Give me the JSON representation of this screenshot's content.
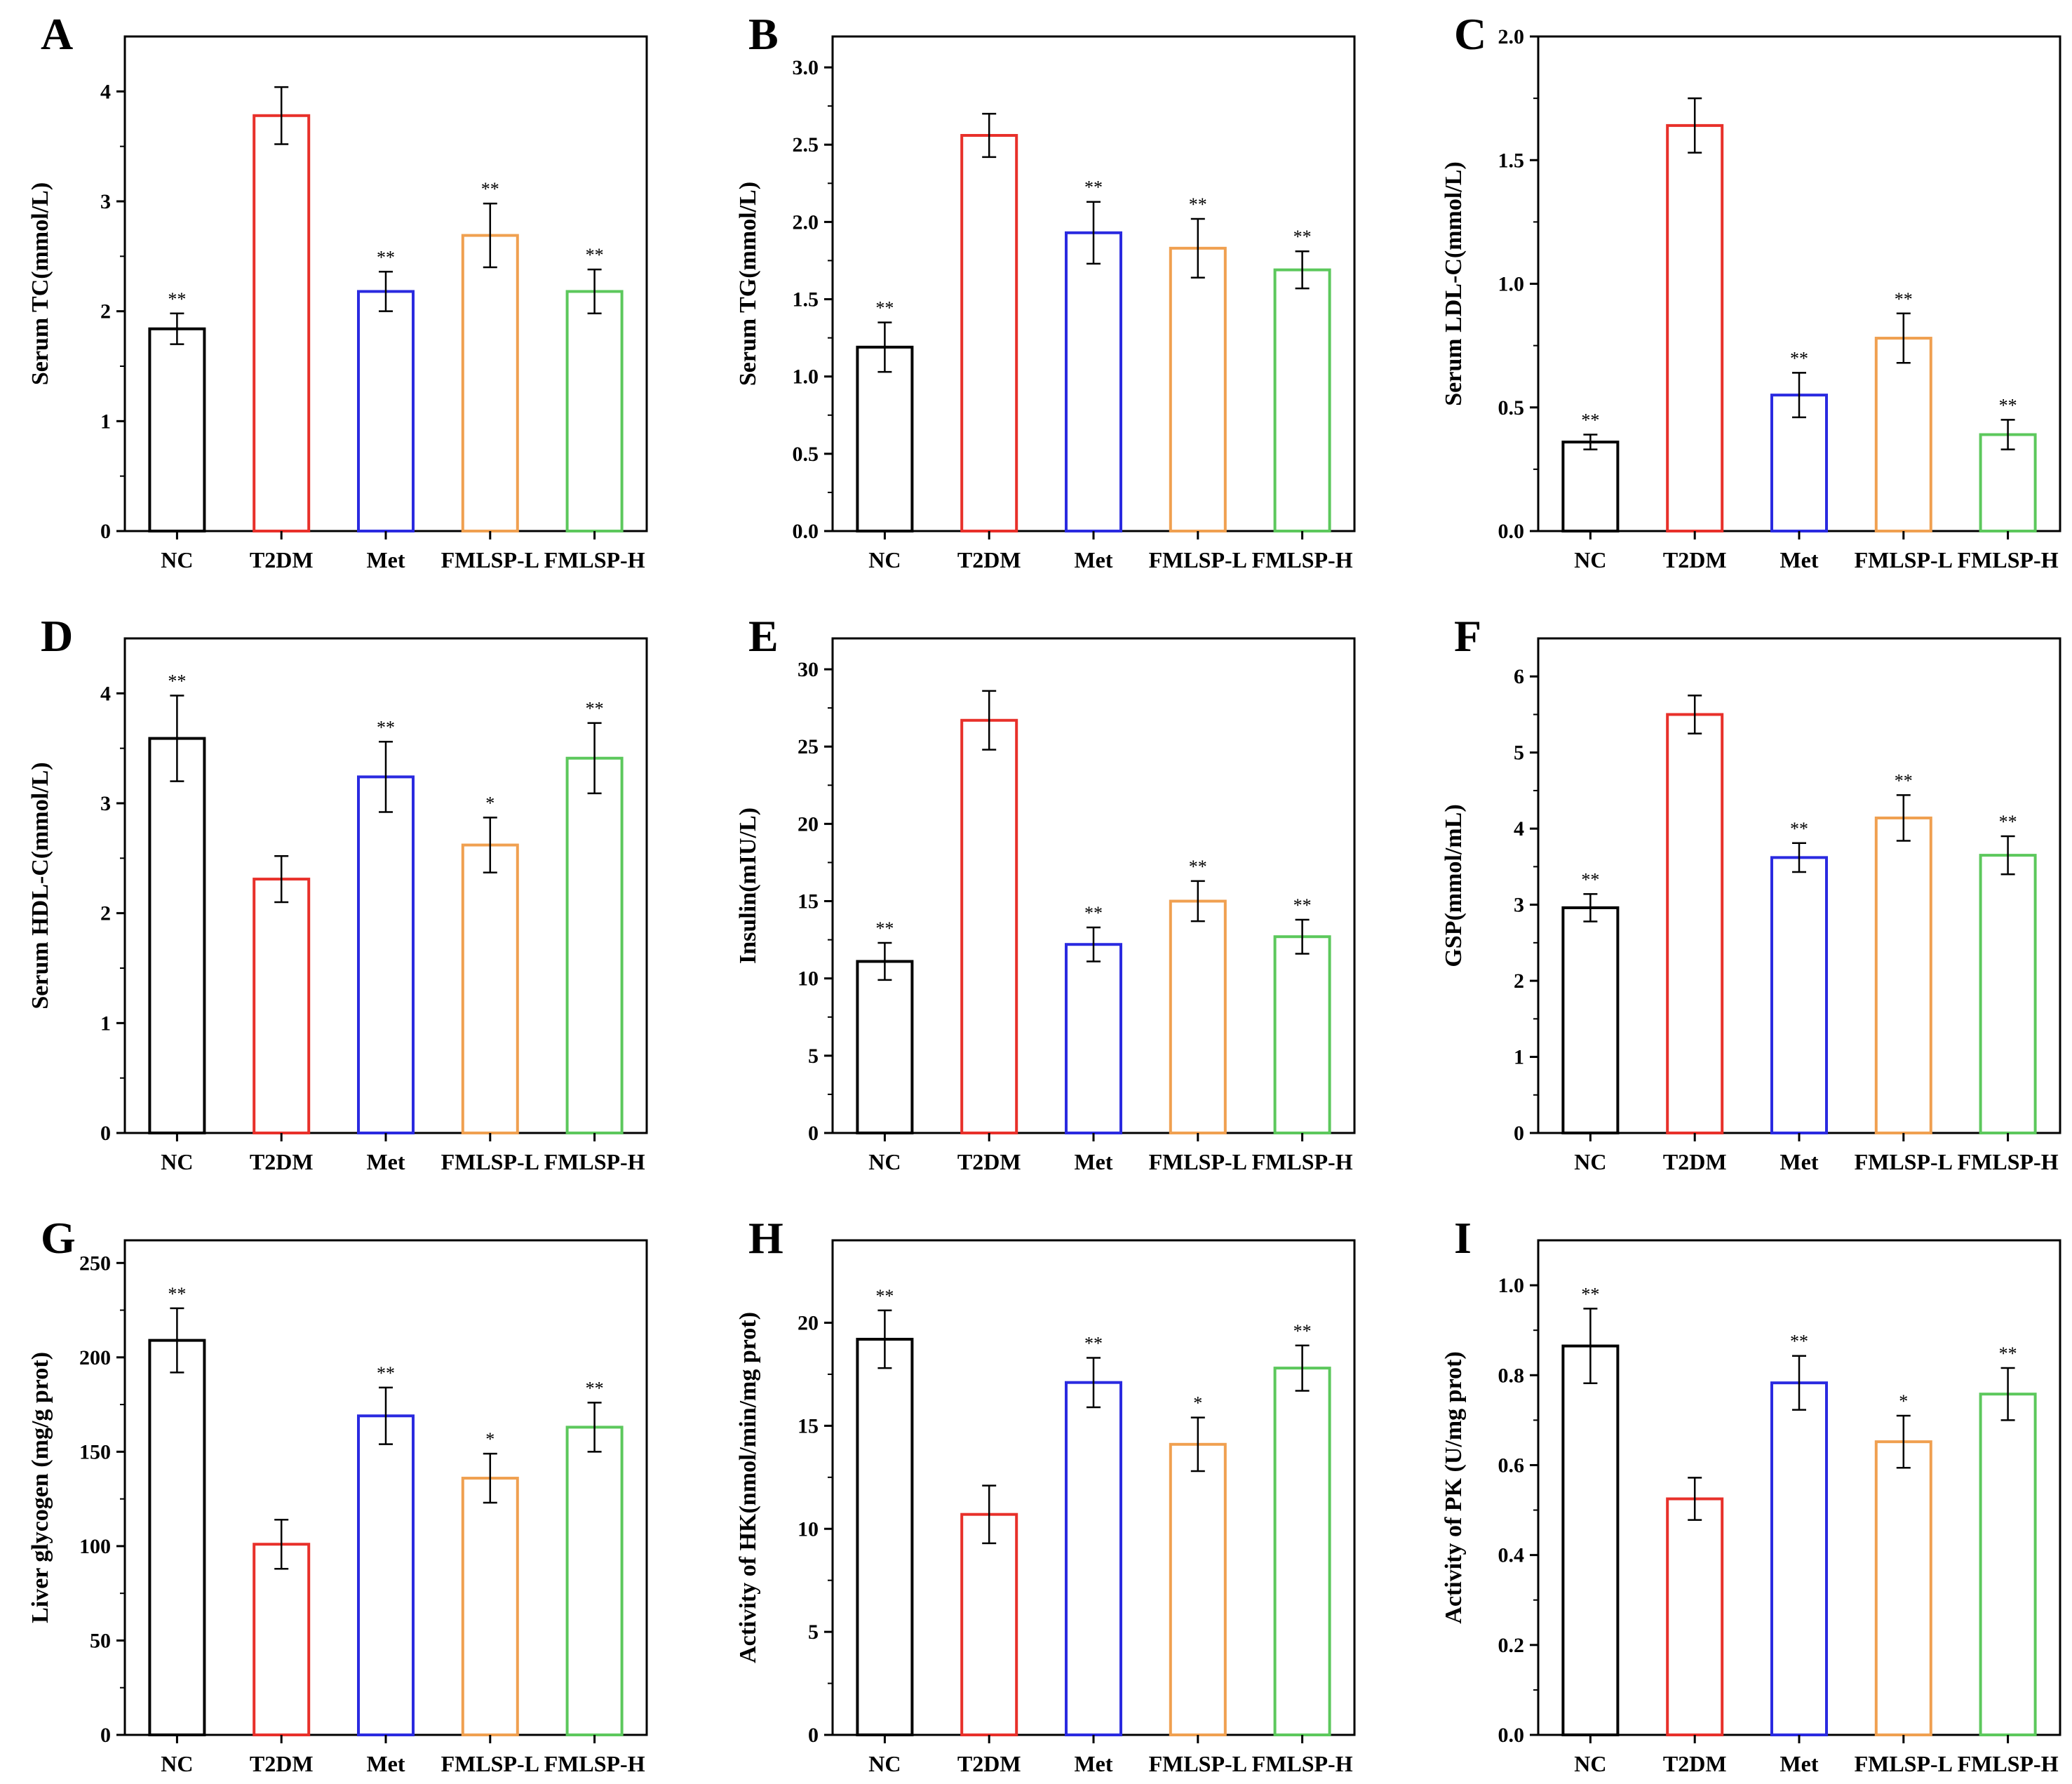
{
  "chart_data": [
    {
      "id": "A",
      "type": "bar",
      "ylabel": "Serum TC(mmol/L)",
      "categories": [
        "NC",
        "T2DM",
        "Met",
        "FMLSP-L",
        "FMLSP-H"
      ],
      "colors": [
        "#000000",
        "#e8302a",
        "#2a2ae0",
        "#f0a050",
        "#5cc85c"
      ],
      "values": [
        1.84,
        3.78,
        2.18,
        2.69,
        2.18
      ],
      "errors": [
        0.14,
        0.26,
        0.18,
        0.29,
        0.2
      ],
      "significance": [
        "**",
        "",
        "**",
        "**",
        "**"
      ],
      "ylim": [
        0,
        4.5
      ],
      "yticks": [
        0,
        1,
        2,
        3,
        4
      ],
      "tick_labels": [
        "0",
        "1",
        "2",
        "3",
        "4"
      ]
    },
    {
      "id": "B",
      "type": "bar",
      "ylabel": "Serum TG(mmol/L)",
      "categories": [
        "NC",
        "T2DM",
        "Met",
        "FMLSP-L",
        "FMLSP-H"
      ],
      "colors": [
        "#000000",
        "#e8302a",
        "#2a2ae0",
        "#f0a050",
        "#5cc85c"
      ],
      "values": [
        1.19,
        2.56,
        1.93,
        1.83,
        1.69
      ],
      "errors": [
        0.16,
        0.14,
        0.2,
        0.19,
        0.12
      ],
      "significance": [
        "**",
        "",
        "**",
        "**",
        "**"
      ],
      "ylim": [
        0,
        3.2
      ],
      "yticks": [
        0,
        0.5,
        1,
        1.5,
        2,
        2.5,
        3
      ],
      "tick_labels": [
        "0.0",
        "0.5",
        "1.0",
        "1.5",
        "2.0",
        "2.5",
        "3.0"
      ]
    },
    {
      "id": "C",
      "type": "bar",
      "ylabel": "Serum LDL-C(mmol/L)",
      "categories": [
        "NC",
        "T2DM",
        "Met",
        "FMLSP-L",
        "FMLSP-H"
      ],
      "colors": [
        "#000000",
        "#e8302a",
        "#2a2ae0",
        "#f0a050",
        "#5cc85c"
      ],
      "values": [
        0.36,
        1.64,
        0.55,
        0.78,
        0.39
      ],
      "errors": [
        0.03,
        0.11,
        0.09,
        0.1,
        0.06
      ],
      "significance": [
        "**",
        "",
        "**",
        "**",
        "**"
      ],
      "ylim": [
        0,
        2.0
      ],
      "yticks": [
        0,
        0.5,
        1,
        1.5,
        2
      ],
      "tick_labels": [
        "0.0",
        "0.5",
        "1.0",
        "1.5",
        "2.0"
      ]
    },
    {
      "id": "D",
      "type": "bar",
      "ylabel": "Serum HDL-C(mmol/L)",
      "categories": [
        "NC",
        "T2DM",
        "Met",
        "FMLSP-L",
        "FMLSP-H"
      ],
      "colors": [
        "#000000",
        "#e8302a",
        "#2a2ae0",
        "#f0a050",
        "#5cc85c"
      ],
      "values": [
        3.59,
        2.31,
        3.24,
        2.62,
        3.41
      ],
      "errors": [
        0.39,
        0.21,
        0.32,
        0.25,
        0.32
      ],
      "significance": [
        "**",
        "",
        "**",
        "*",
        "**"
      ],
      "ylim": [
        0,
        4.5
      ],
      "yticks": [
        0,
        1,
        2,
        3,
        4
      ],
      "tick_labels": [
        "0",
        "1",
        "2",
        "3",
        "4"
      ]
    },
    {
      "id": "E",
      "type": "bar",
      "ylabel": "Insulin(mIU/L)",
      "categories": [
        "NC",
        "T2DM",
        "Met",
        "FMLSP-L",
        "FMLSP-H"
      ],
      "colors": [
        "#000000",
        "#e8302a",
        "#2a2ae0",
        "#f0a050",
        "#5cc85c"
      ],
      "values": [
        11.1,
        26.7,
        12.2,
        15.0,
        12.7
      ],
      "errors": [
        1.2,
        1.9,
        1.1,
        1.3,
        1.1
      ],
      "significance": [
        "**",
        "",
        "**",
        "**",
        "**"
      ],
      "ylim": [
        0,
        32
      ],
      "yticks": [
        0,
        5,
        10,
        15,
        20,
        25,
        30
      ],
      "tick_labels": [
        "0",
        "5",
        "10",
        "15",
        "20",
        "25",
        "30"
      ]
    },
    {
      "id": "F",
      "type": "bar",
      "ylabel": "GSP(mmol/mL)",
      "categories": [
        "NC",
        "T2DM",
        "Met",
        "FMLSP-L",
        "FMLSP-H"
      ],
      "colors": [
        "#000000",
        "#e8302a",
        "#2a2ae0",
        "#f0a050",
        "#5cc85c"
      ],
      "values": [
        2.96,
        5.5,
        3.62,
        4.14,
        3.65
      ],
      "errors": [
        0.18,
        0.25,
        0.19,
        0.3,
        0.25
      ],
      "significance": [
        "**",
        "",
        "**",
        "**",
        "**"
      ],
      "ylim": [
        0,
        6.5
      ],
      "yticks": [
        0,
        1,
        2,
        3,
        4,
        5,
        6
      ],
      "tick_labels": [
        "0",
        "1",
        "2",
        "3",
        "4",
        "5",
        "6"
      ]
    },
    {
      "id": "G",
      "type": "bar",
      "ylabel": "Liver glycogen (mg/g prot)",
      "categories": [
        "NC",
        "T2DM",
        "Met",
        "FMLSP-L",
        "FMLSP-H"
      ],
      "colors": [
        "#000000",
        "#e8302a",
        "#2a2ae0",
        "#f0a050",
        "#5cc85c"
      ],
      "values": [
        209,
        101,
        169,
        136,
        163
      ],
      "errors": [
        17,
        13,
        15,
        13,
        13
      ],
      "significance": [
        "**",
        "",
        "**",
        "*",
        "**"
      ],
      "ylim": [
        0,
        262
      ],
      "yticks": [
        0,
        50,
        100,
        150,
        200,
        250
      ],
      "tick_labels": [
        "0",
        "50",
        "100",
        "150",
        "200",
        "250"
      ]
    },
    {
      "id": "H",
      "type": "bar",
      "ylabel": "Activity of HK(nmol/min/mg prot)",
      "categories": [
        "NC",
        "T2DM",
        "Met",
        "FMLSP-L",
        "FMLSP-H"
      ],
      "colors": [
        "#000000",
        "#e8302a",
        "#2a2ae0",
        "#f0a050",
        "#5cc85c"
      ],
      "values": [
        19.2,
        10.7,
        17.1,
        14.1,
        17.8
      ],
      "errors": [
        1.4,
        1.4,
        1.2,
        1.3,
        1.1
      ],
      "significance": [
        "**",
        "",
        "**",
        "*",
        "**"
      ],
      "ylim": [
        0,
        24
      ],
      "yticks": [
        0,
        5,
        10,
        15,
        20
      ],
      "tick_labels": [
        "0",
        "5",
        "10",
        "15",
        "20"
      ]
    },
    {
      "id": "I",
      "type": "bar",
      "ylabel": "Activity of PK (U/mg prot)",
      "categories": [
        "NC",
        "T2DM",
        "Met",
        "FMLSP-L",
        "FMLSP-H"
      ],
      "colors": [
        "#000000",
        "#e8302a",
        "#2a2ae0",
        "#f0a050",
        "#5cc85c"
      ],
      "values": [
        0.865,
        0.525,
        0.783,
        0.652,
        0.758
      ],
      "errors": [
        0.083,
        0.047,
        0.06,
        0.058,
        0.058
      ],
      "significance": [
        "**",
        "",
        "**",
        "*",
        "**"
      ],
      "ylim": [
        0,
        1.1
      ],
      "yticks": [
        0,
        0.2,
        0.4,
        0.6,
        0.8,
        1.0
      ],
      "tick_labels": [
        "0.0",
        "0.2",
        "0.4",
        "0.6",
        "0.8",
        "1.0"
      ]
    }
  ]
}
